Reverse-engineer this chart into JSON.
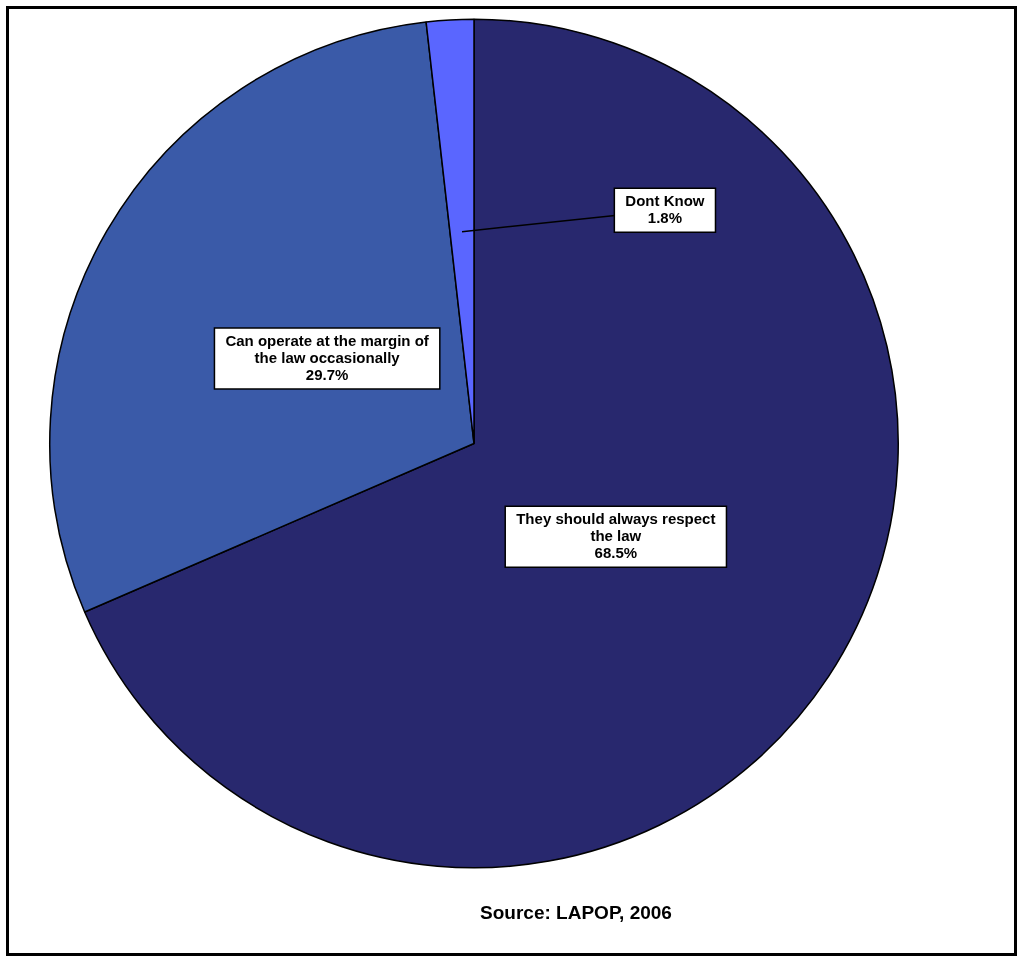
{
  "chart_data": {
    "type": "pie",
    "categories": [
      "They should always respect the law",
      "Can operate at the margin of the law occasionally",
      "Dont Know"
    ],
    "values": [
      68.5,
      29.7,
      1.8
    ],
    "colors": [
      "#28286e",
      "#3a5aa8",
      "#5a66ff"
    ],
    "value_labels": [
      "68.5%",
      "29.7%",
      "1.8%"
    ],
    "legend": false,
    "annotations": [
      "Source: LAPOP, 2006"
    ]
  }
}
